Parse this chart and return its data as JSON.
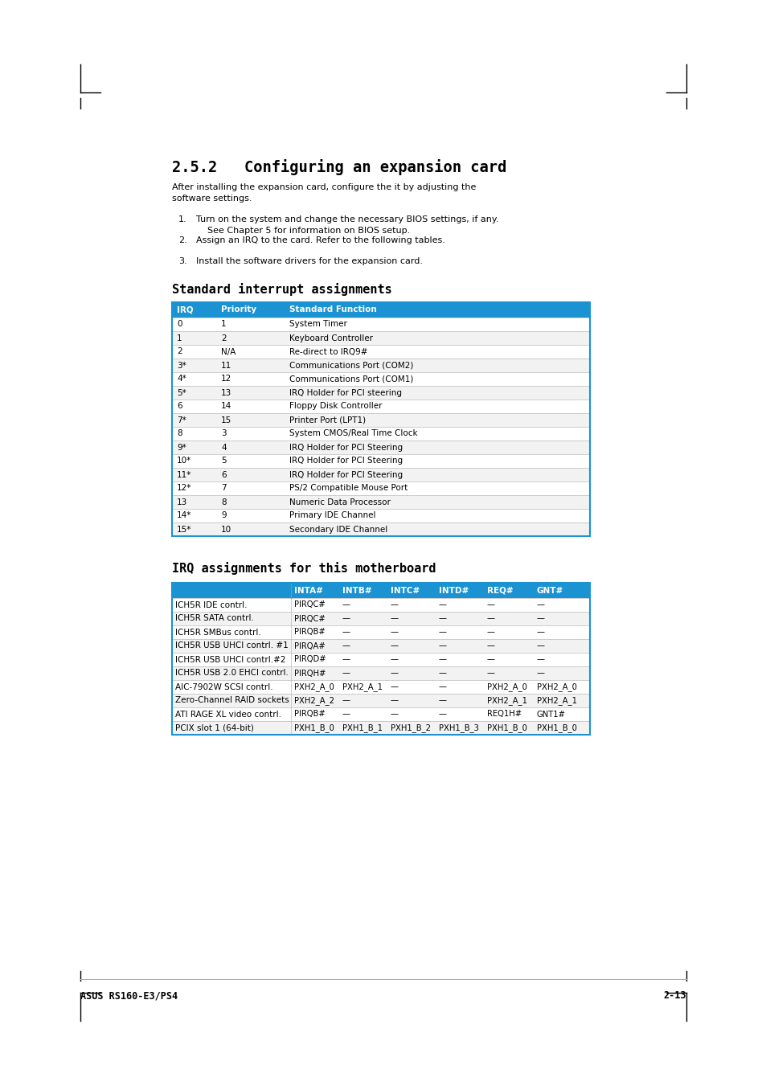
{
  "page_bg": "#ffffff",
  "header_title": "2.5.2   Configuring an expansion card",
  "intro_text": "After installing the expansion card, configure the it by adjusting the\nsoftware settings.",
  "steps": [
    "Turn on the system and change the necessary BIOS settings, if any.\n    See Chapter 5 for information on BIOS setup.",
    "Assign an IRQ to the card. Refer to the following tables.",
    "Install the software drivers for the expansion card."
  ],
  "table1_title": "Standard interrupt assignments",
  "table1_header": [
    "IRQ",
    "Priority",
    "Standard Function"
  ],
  "table1_header_bg": "#1b92d1",
  "table1_rows": [
    [
      "0",
      "1",
      "System Timer"
    ],
    [
      "1",
      "2",
      "Keyboard Controller"
    ],
    [
      "2",
      "N/A",
      "Re-direct to IRQ9#"
    ],
    [
      "3*",
      "11",
      "Communications Port (COM2)"
    ],
    [
      "4*",
      "12",
      "Communications Port (COM1)"
    ],
    [
      "5*",
      "13",
      "IRQ Holder for PCI steering"
    ],
    [
      "6",
      "14",
      "Floppy Disk Controller"
    ],
    [
      "7*",
      "15",
      "Printer Port (LPT1)"
    ],
    [
      "8",
      "3",
      "System CMOS/Real Time Clock"
    ],
    [
      "9*",
      "4",
      "IRQ Holder for PCI Steering"
    ],
    [
      "10*",
      "5",
      "IRQ Holder for PCI Steering"
    ],
    [
      "11*",
      "6",
      "IRQ Holder for PCI Steering"
    ],
    [
      "12*",
      "7",
      "PS/2 Compatible Mouse Port"
    ],
    [
      "13",
      "8",
      "Numeric Data Processor"
    ],
    [
      "14*",
      "9",
      "Primary IDE Channel"
    ],
    [
      "15*",
      "10",
      "Secondary IDE Channel"
    ]
  ],
  "table1_border": "#1b92d1",
  "table2_title": "IRQ assignments for this motherboard",
  "table2_header": [
    "",
    "INTA#",
    "INTB#",
    "INTC#",
    "INTD#",
    "REQ#",
    "GNT#"
  ],
  "table2_header_bg": "#1b92d1",
  "table2_rows": [
    [
      "ICH5R IDE contrl.",
      "PIRQC#",
      "—",
      "—",
      "—",
      "—",
      "—"
    ],
    [
      "ICH5R SATA contrl.",
      "PIRQC#",
      "—",
      "—",
      "—",
      "—",
      "—"
    ],
    [
      "ICH5R SMBus contrl.",
      "PIRQB#",
      "—",
      "—",
      "—",
      "—",
      "—"
    ],
    [
      "ICH5R USB UHCI contrl. #1",
      "PIRQA#",
      "—",
      "—",
      "—",
      "—",
      "—"
    ],
    [
      "ICH5R USB UHCI contrl.#2",
      "PIRQD#",
      "—",
      "—",
      "—",
      "—",
      "—"
    ],
    [
      "ICH5R USB 2.0 EHCI contrl.",
      "PIRQH#",
      "—",
      "—",
      "—",
      "—",
      "—"
    ],
    [
      "AIC-7902W SCSI contrl.",
      "PXH2_A_0",
      "PXH2_A_1",
      "—",
      "—",
      "PXH2_A_0",
      "PXH2_A_0"
    ],
    [
      "Zero-Channel RAID sockets",
      "PXH2_A_2",
      "—",
      "—",
      "—",
      "PXH2_A_1",
      "PXH2_A_1"
    ],
    [
      "ATI RAGE XL video contrl.",
      "PIRQB#",
      "—",
      "—",
      "—",
      "REQ1H#",
      "GNT1#"
    ],
    [
      "PCIX slot 1 (64-bit)",
      "PXH1_B_0",
      "PXH1_B_1",
      "PXH1_B_2",
      "PXH1_B_3",
      "PXH1_B_0",
      "PXH1_B_0"
    ]
  ],
  "table2_border": "#1b92d1",
  "footer_left": "ASUS RS160-E3/PS4",
  "footer_right": "2-13",
  "text_color": "#000000",
  "body_font_size": 8.0,
  "table_font_size": 7.5,
  "heading_font_size": 11.0,
  "section_font_size": 13.5
}
